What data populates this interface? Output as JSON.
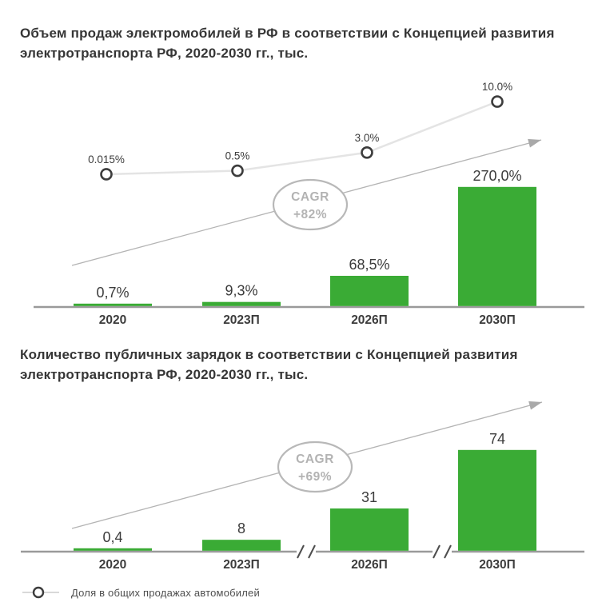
{
  "colors": {
    "bar_green": "#3aab35",
    "axis_gray": "#9a9a9a",
    "share_line_gray": "#e4e4e4",
    "marker_stroke": "#3d3d3d",
    "arrow_line": "#b4b4b4",
    "arrow_head": "#a9a9a9",
    "cagr_stroke": "#b8b8b8",
    "cagr_text": "#b3b3b3",
    "text_dark": "#3c3c3c",
    "break_mark": "#4d4d4d"
  },
  "legend": {
    "label": "Доля в общих продажах автомобилей"
  },
  "chart_data": [
    {
      "type": "bar",
      "title": "Объем продаж электромобилей в РФ в соответствии с Концепцией развития электротранспорта РФ, 2020-2030 гг., тыс.",
      "categories": [
        "2020",
        "2023П",
        "2026П",
        "2030П"
      ],
      "bar_color": "#3aab35",
      "bar_series": {
        "name": "Объем продаж электромобилей, тыс.",
        "values": [
          0.7,
          9.3,
          68.5,
          270.0
        ],
        "labels": [
          "0,7%",
          "9,3%",
          "68,5%",
          "270,0%"
        ]
      },
      "line_series": {
        "name": "Доля в общих продажах автомобилей",
        "type": "line",
        "values": [
          0.015,
          0.5,
          3.0,
          10.0
        ],
        "labels": [
          "0.015%",
          "0.5%",
          "3.0%",
          "10.0%"
        ]
      },
      "cagr": {
        "line1": "CAGR",
        "line2": "+82%"
      },
      "xlabel": "",
      "ylabel": "",
      "grid": false,
      "axis_breaks": false
    },
    {
      "type": "bar",
      "title": "Количество публичных зарядок в соответствии с Концепцией развития электротранспорта РФ, 2020-2030 гг., тыс.",
      "categories": [
        "2020",
        "2023П",
        "2026П",
        "2030П"
      ],
      "bar_color": "#3aab35",
      "bar_series": {
        "name": "Количество публичных зарядок, тыс.",
        "values": [
          0.4,
          8,
          31,
          74
        ],
        "labels": [
          "0,4",
          "8",
          "31",
          "74"
        ]
      },
      "cagr": {
        "line1": "CAGR",
        "line2": "+69%"
      },
      "xlabel": "",
      "ylabel": "",
      "grid": false,
      "axis_breaks": true
    }
  ]
}
